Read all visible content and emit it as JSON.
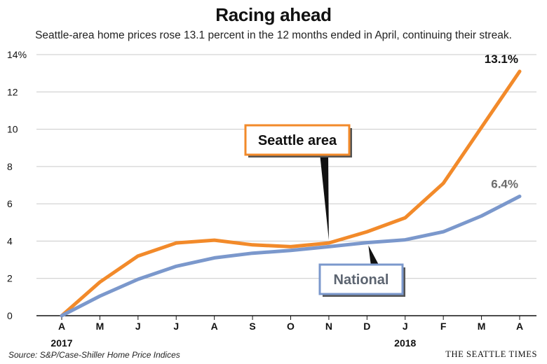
{
  "title": "Racing ahead",
  "subtitle": "Seattle-area home prices rose 13.1 percent in the 12 months ended in April, continuing their streak.",
  "source": "Source: S&P/Case-Shiller Home Price Indices",
  "credit": "THE SEATTLE TIMES",
  "chart_data": {
    "type": "line",
    "categories": [
      "A",
      "M",
      "J",
      "J",
      "A",
      "S",
      "O",
      "N",
      "D",
      "J",
      "F",
      "M",
      "A"
    ],
    "year_labels": [
      {
        "label": "2017",
        "category_index": 0
      },
      {
        "label": "2018",
        "category_index": 9
      }
    ],
    "ylim": [
      0,
      14
    ],
    "yticks": [
      {
        "value": 0,
        "label": "0"
      },
      {
        "value": 2,
        "label": "2"
      },
      {
        "value": 4,
        "label": "4"
      },
      {
        "value": 6,
        "label": "6"
      },
      {
        "value": 8,
        "label": "8"
      },
      {
        "value": 10,
        "label": "10"
      },
      {
        "value": 12,
        "label": "12"
      },
      {
        "value": 14,
        "label": "14%"
      }
    ],
    "grid": true,
    "series": [
      {
        "name": "Seattle area",
        "color": "#f28a2a",
        "values": [
          0,
          1.8,
          3.2,
          3.9,
          4.05,
          3.8,
          3.7,
          3.9,
          4.5,
          5.25,
          7.1,
          10.1,
          13.1
        ],
        "end_label": "13.1%",
        "end_label_color": "#111111"
      },
      {
        "name": "National",
        "color": "#7b98cc",
        "values": [
          0,
          1.05,
          1.95,
          2.65,
          3.1,
          3.35,
          3.5,
          3.7,
          3.92,
          4.07,
          4.5,
          5.35,
          6.4
        ],
        "end_label": "6.4%",
        "end_label_color": "#6b6b6b"
      }
    ],
    "callouts": [
      {
        "series": 0,
        "text": "Seattle area",
        "border_color": "#f28a2a",
        "point_index": 7
      },
      {
        "series": 1,
        "text": "National",
        "border_color": "#7b98cc",
        "point_index": 8
      }
    ]
  }
}
